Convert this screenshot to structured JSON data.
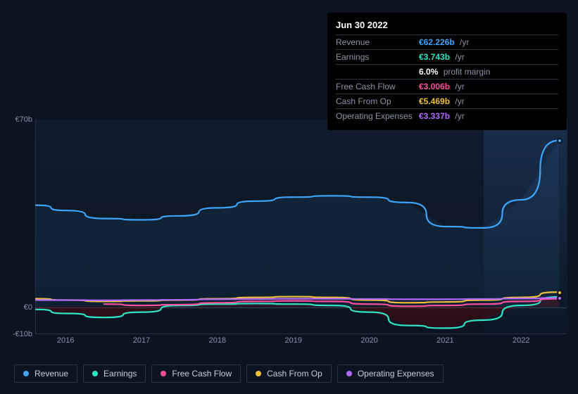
{
  "panel": {
    "date": "Jun 30 2022",
    "rows": [
      {
        "label": "Revenue",
        "value": "€62.226b",
        "suffix": "/yr",
        "indent": false
      },
      {
        "label": "Earnings",
        "value": "€3.743b",
        "suffix": "/yr",
        "indent": false
      },
      {
        "label": "",
        "value": "6.0%",
        "suffix": "profit margin",
        "indent": true
      },
      {
        "label": "Free Cash Flow",
        "value": "€3.006b",
        "suffix": "/yr",
        "indent": false
      },
      {
        "label": "Cash From Op",
        "value": "€5.469b",
        "suffix": "/yr",
        "indent": false
      },
      {
        "label": "Operating Expenses",
        "value": "€3.337b",
        "suffix": "/yr",
        "indent": false
      }
    ],
    "value_colors": [
      "#3ea6ff",
      "#2ee6c6",
      "#ffffff",
      "#ff4f9a",
      "#f0c23c",
      "#b169ff"
    ]
  },
  "chart": {
    "type": "line",
    "background_color": "#0b1420",
    "plot_background": "rgba(30,50,80,0.15)",
    "grid_color": "#273244",
    "y_range": [
      -10,
      70
    ],
    "y_ticks": [
      {
        "v": 70,
        "label": "€70b"
      },
      {
        "v": 0,
        "label": "€0"
      },
      {
        "v": -10,
        "label": "-€10b"
      }
    ],
    "x_range": [
      2015.6,
      2022.6
    ],
    "x_ticks": [
      2016,
      2017,
      2018,
      2019,
      2020,
      2021,
      2022
    ],
    "highlight_from_x": 2021.5,
    "highlight_to_x": 2022.6,
    "line_width": 2.2,
    "series": [
      {
        "name": "Revenue",
        "color": "#3ea6ff",
        "fill": "rgba(62,166,255,0.08)",
        "x": [
          2015.6,
          2016,
          2016.5,
          2017,
          2017.5,
          2018,
          2018.5,
          2019,
          2019.5,
          2020,
          2020.5,
          2021,
          2021.5,
          2022,
          2022.5
        ],
        "y": [
          38,
          36,
          33,
          32.5,
          34,
          37,
          39.5,
          41,
          41.5,
          41,
          39,
          30,
          29.5,
          40,
          62.2
        ]
      },
      {
        "name": "Earnings",
        "color": "#2ee6c6",
        "fill": "rgba(139,0,0,0.25)",
        "x": [
          2015.6,
          2016,
          2016.5,
          2017,
          2017.5,
          2018,
          2018.5,
          2019,
          2019.5,
          2020,
          2020.5,
          2021,
          2021.5,
          2022,
          2022.5
        ],
        "y": [
          -1,
          -2.5,
          -4,
          -2,
          0.5,
          1,
          1.2,
          1,
          0.5,
          -2,
          -7,
          -8,
          -5,
          0.5,
          3.7
        ]
      },
      {
        "name": "Free Cash Flow",
        "color": "#ff4f9a",
        "x": [
          2016.5,
          2017,
          2017.5,
          2018,
          2018.5,
          2019,
          2019.5,
          2020,
          2020.5,
          2021,
          2021.5,
          2022,
          2022.5
        ],
        "y": [
          1,
          0.5,
          0.8,
          1.5,
          2,
          2.2,
          2,
          1,
          0.2,
          0.5,
          1,
          2,
          3.0
        ]
      },
      {
        "name": "Cash From Op",
        "color": "#f0c23c",
        "x": [
          2015.6,
          2016,
          2016.5,
          2017,
          2017.5,
          2018,
          2018.5,
          2019,
          2019.5,
          2020,
          2020.5,
          2021,
          2021.5,
          2022,
          2022.5
        ],
        "y": [
          3,
          2.5,
          2,
          2.2,
          2.5,
          3,
          3.5,
          3.8,
          3.5,
          2.5,
          1.5,
          1.8,
          2.5,
          3.5,
          5.5
        ]
      },
      {
        "name": "Operating Expenses",
        "color": "#b169ff",
        "x": [
          2015.6,
          2016,
          2016.5,
          2017,
          2017.5,
          2018,
          2018.5,
          2019,
          2019.5,
          2020,
          2020.5,
          2021,
          2021.5,
          2022,
          2022.5
        ],
        "y": [
          2.5,
          2.5,
          2.4,
          2.5,
          2.6,
          2.8,
          2.9,
          3,
          3,
          2.9,
          2.8,
          2.8,
          2.9,
          3.1,
          3.3
        ]
      }
    ],
    "markers_at_x": 2022.5
  },
  "legend": {
    "items": [
      {
        "label": "Revenue",
        "color": "#3ea6ff"
      },
      {
        "label": "Earnings",
        "color": "#2ee6c6"
      },
      {
        "label": "Free Cash Flow",
        "color": "#ff4f9a"
      },
      {
        "label": "Cash From Op",
        "color": "#f0c23c"
      },
      {
        "label": "Operating Expenses",
        "color": "#b169ff"
      }
    ]
  },
  "typography": {
    "axis_fontsize": 11,
    "panel_fontsize": 12,
    "legend_fontsize": 12
  }
}
